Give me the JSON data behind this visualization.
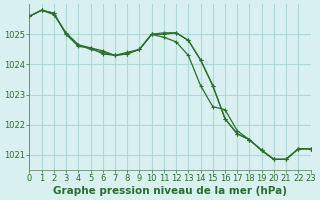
{
  "background_color": "#d8f0f0",
  "grid_color": "#b0d8d8",
  "line_color": "#2d6e2d",
  "xlabel": "Graphe pression niveau de la mer (hPa)",
  "xlabel_fontsize": 7.5,
  "tick_fontsize": 6,
  "ylim": [
    1020.5,
    1026.0
  ],
  "xlim": [
    0,
    23
  ],
  "yticks": [
    1021,
    1022,
    1023,
    1024,
    1025
  ],
  "xticks": [
    0,
    1,
    2,
    3,
    4,
    5,
    6,
    7,
    8,
    9,
    10,
    11,
    12,
    13,
    14,
    15,
    16,
    17,
    18,
    19,
    20,
    21,
    22,
    23
  ],
  "series": [
    [
      1025.6,
      1025.8,
      1025.7,
      1025.0,
      1024.6,
      1024.55,
      1024.35,
      1024.3,
      1024.4,
      1024.5,
      1025.0,
      1024.9,
      1024.75,
      1024.3,
      1023.3,
      1022.6,
      1022.5,
      1021.8,
      1021.5,
      1021.15,
      1020.85,
      1020.85,
      1021.2,
      1021.2
    ],
    [
      1025.6,
      1025.8,
      1025.7,
      1025.0,
      1024.65,
      1024.55,
      1024.45,
      1024.3,
      1024.35,
      1024.5,
      1025.0,
      1025.0,
      1025.05,
      1024.8,
      1024.15,
      1023.3,
      1022.2,
      1021.7,
      1021.5,
      1021.15,
      1020.85,
      1020.85,
      1021.2,
      1021.2
    ],
    [
      1025.6,
      1025.8,
      1025.65,
      1025.05,
      1024.65,
      1024.5,
      1024.4,
      1024.3,
      1024.35,
      1024.5,
      1025.0,
      1025.05,
      1025.05,
      1024.8,
      1024.15,
      1023.3,
      1022.2,
      1021.7,
      1021.5,
      1021.15,
      1020.85,
      1020.85,
      1021.2,
      1021.2
    ]
  ]
}
